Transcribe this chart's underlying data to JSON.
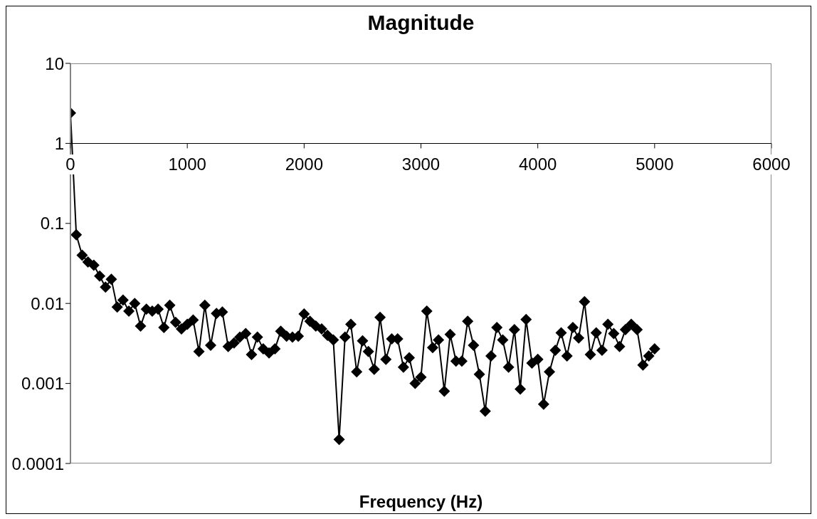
{
  "chart_data": {
    "type": "line",
    "title": "Magnitude",
    "xlabel": "Frequency (Hz)",
    "x": [
      0,
      50,
      100,
      150,
      200,
      250,
      300,
      350,
      400,
      450,
      500,
      550,
      600,
      650,
      700,
      750,
      800,
      850,
      900,
      950,
      1000,
      1050,
      1100,
      1150,
      1200,
      1250,
      1300,
      1350,
      1400,
      1450,
      1500,
      1550,
      1600,
      1650,
      1700,
      1750,
      1800,
      1850,
      1900,
      1950,
      2000,
      2050,
      2100,
      2150,
      2200,
      2250,
      2300,
      2350,
      2400,
      2450,
      2500,
      2550,
      2600,
      2650,
      2700,
      2750,
      2800,
      2850,
      2900,
      2950,
      3000,
      3050,
      3100,
      3150,
      3200,
      3250,
      3300,
      3350,
      3400,
      3450,
      3500,
      3550,
      3600,
      3650,
      3700,
      3750,
      3800,
      3850,
      3900,
      3950,
      4000,
      4050,
      4100,
      4150,
      4200,
      4250,
      4300,
      4350,
      4400,
      4450,
      4500,
      4550,
      4600,
      4650,
      4700,
      4750,
      4800,
      4850,
      4900,
      4950,
      5000
    ],
    "series": [
      {
        "color": "#000000",
        "values": [
          2.4,
          0.072,
          0.04,
          0.033,
          0.03,
          0.022,
          0.016,
          0.02,
          0.009,
          0.011,
          0.008,
          0.01,
          0.0052,
          0.0085,
          0.008,
          0.0085,
          0.005,
          0.0095,
          0.0058,
          0.0048,
          0.0055,
          0.0062,
          0.0025,
          0.0095,
          0.003,
          0.0075,
          0.0078,
          0.0029,
          0.0032,
          0.0038,
          0.0042,
          0.0023,
          0.0038,
          0.0027,
          0.0024,
          0.0027,
          0.0045,
          0.0039,
          0.0038,
          0.0039,
          0.0074,
          0.006,
          0.0052,
          0.0048,
          0.004,
          0.0035,
          0.0002,
          0.0038,
          0.0055,
          0.0014,
          0.0034,
          0.0025,
          0.0015,
          0.0067,
          0.002,
          0.0036,
          0.0036,
          0.0016,
          0.0021,
          0.001,
          0.0012,
          0.008,
          0.0028,
          0.0035,
          0.0008,
          0.0041,
          0.0019,
          0.0019,
          0.006,
          0.003,
          0.0013,
          0.00045,
          0.0022,
          0.005,
          0.0035,
          0.0016,
          0.0047,
          0.00085,
          0.0063,
          0.0018,
          0.002,
          0.00055,
          0.0014,
          0.0026,
          0.0043,
          0.0022,
          0.005,
          0.0037,
          0.0105,
          0.0023,
          0.0043,
          0.0026,
          0.0055,
          0.0042,
          0.0029,
          0.0047,
          0.0055,
          0.0047,
          0.0017,
          0.0022,
          0.0027
        ]
      }
    ],
    "xlim": [
      0,
      6000
    ],
    "xticks": [
      0,
      1000,
      2000,
      3000,
      4000,
      5000,
      6000
    ],
    "ylim": [
      0.0001,
      10
    ],
    "yticks": [
      0.0001,
      0.001,
      0.01,
      0.1,
      1,
      10
    ],
    "log": "y",
    "grid": false,
    "legend": false,
    "marker": "diamond",
    "line_style": "solid"
  }
}
